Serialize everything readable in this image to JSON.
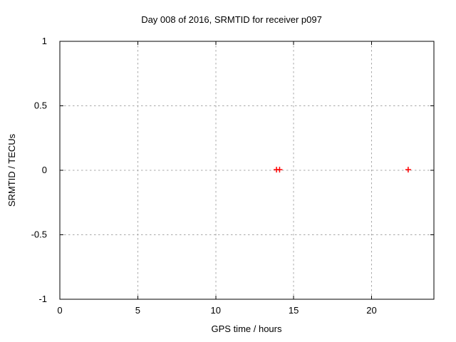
{
  "window": {
    "background": "#ffffff"
  },
  "chart_data": {
    "type": "scatter",
    "title": "Day 008 of 2016, SRMTID for receiver p097",
    "xlabel": "GPS time / hours",
    "ylabel": "SRMTID / TECUs",
    "xlim": [
      0,
      24
    ],
    "ylim": [
      -1,
      1
    ],
    "xticks": [
      0,
      5,
      10,
      15,
      20
    ],
    "yticks": [
      -1,
      -0.5,
      0,
      0.5,
      1
    ],
    "grid": true,
    "grid_style": "dashed",
    "legend": "none",
    "series": [
      {
        "name": "srmtid",
        "marker": "plus",
        "color": "#ff0000",
        "points": [
          {
            "x": 13.9,
            "y": 0.005
          },
          {
            "x": 14.1,
            "y": 0.005
          },
          {
            "x": 22.35,
            "y": 0.005
          }
        ]
      }
    ],
    "colors": {
      "border": "#000000",
      "grid": "#a8a8a8",
      "text": "#000000",
      "background": "#ffffff"
    }
  }
}
